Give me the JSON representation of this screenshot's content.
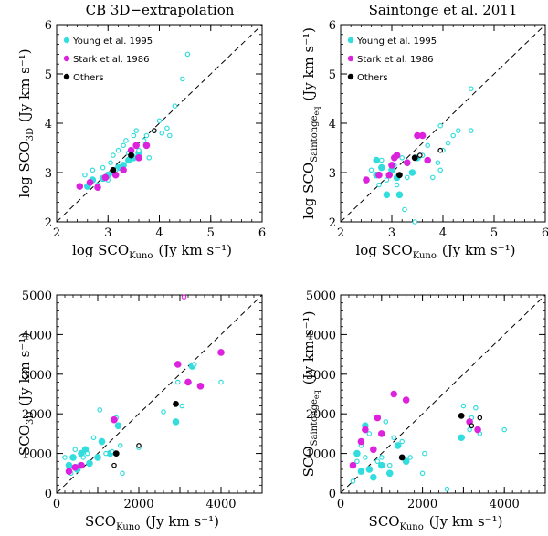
{
  "figure": {
    "col_titles": [
      "CB 3D−extrapolation",
      "Saintonge et al. 2011"
    ]
  },
  "legend": {
    "entries": [
      {
        "label": "Young et al. 1995",
        "color": "#33dddd"
      },
      {
        "label": "Stark et al. 1986",
        "color": "#dd22dd"
      },
      {
        "label": "Others",
        "color": "#000000"
      }
    ]
  },
  "chart_data": [
    {
      "id": "tl",
      "type": "scatter",
      "log": true,
      "title": "CB 3D−extrapolation",
      "xlabel": "log SCO",
      "xlabel_sub": "Kuno",
      "xlabel_unit": "(Jy km s⁻¹)",
      "ylabel": "log SCO",
      "ylabel_sub": "3D",
      "ylabel_unit": "(Jy km s⁻¹)",
      "xlim": [
        2,
        6
      ],
      "ylim": [
        2,
        6
      ],
      "xticks": [
        "2",
        "3",
        "4",
        "5",
        "6"
      ],
      "yticks": [
        "2",
        "3",
        "4",
        "5",
        "6"
      ],
      "xtick_values": [
        2,
        3,
        4,
        5,
        6
      ],
      "ytick_values": [
        2,
        3,
        4,
        5,
        6
      ],
      "one_to_one": true,
      "legend": true,
      "series": [
        {
          "name": "Young et al. 1995",
          "color": "#33dddd",
          "filled": [
            [
              2.6,
              2.72
            ],
            [
              2.7,
              2.85
            ],
            [
              2.9,
              2.88
            ],
            [
              3.0,
              2.95
            ],
            [
              3.1,
              3.0
            ],
            [
              3.2,
              3.1
            ],
            [
              3.3,
              3.15
            ],
            [
              3.4,
              3.25
            ],
            [
              3.45,
              3.35
            ],
            [
              3.5,
              3.3
            ],
            [
              3.6,
              3.4
            ],
            [
              3.75,
              3.55
            ]
          ],
          "open": [
            [
              2.55,
              2.95
            ],
            [
              2.7,
              3.05
            ],
            [
              2.8,
              2.75
            ],
            [
              2.9,
              3.1
            ],
            [
              3.0,
              2.85
            ],
            [
              3.05,
              3.2
            ],
            [
              3.1,
              3.35
            ],
            [
              3.15,
              3.05
            ],
            [
              3.2,
              3.45
            ],
            [
              3.3,
              3.55
            ],
            [
              3.35,
              3.65
            ],
            [
              3.4,
              3.4
            ],
            [
              3.5,
              3.75
            ],
            [
              3.55,
              3.85
            ],
            [
              3.6,
              3.45
            ],
            [
              3.7,
              3.65
            ],
            [
              3.75,
              3.75
            ],
            [
              3.8,
              3.3
            ],
            [
              3.9,
              3.85
            ],
            [
              4.0,
              4.05
            ],
            [
              4.05,
              3.8
            ],
            [
              4.15,
              3.9
            ],
            [
              4.2,
              3.75
            ],
            [
              4.3,
              4.35
            ],
            [
              4.45,
              4.9
            ],
            [
              4.55,
              5.4
            ]
          ]
        },
        {
          "name": "Stark et al. 1986",
          "color": "#dd22dd",
          "filled": [
            [
              2.45,
              2.72
            ],
            [
              2.65,
              2.8
            ],
            [
              2.8,
              2.7
            ],
            [
              2.95,
              2.9
            ],
            [
              3.15,
              2.95
            ],
            [
              3.3,
              3.05
            ],
            [
              3.45,
              3.45
            ],
            [
              3.55,
              3.55
            ],
            [
              3.6,
              3.3
            ],
            [
              3.75,
              3.55
            ]
          ],
          "open": []
        },
        {
          "name": "Others",
          "color": "#000000",
          "filled": [
            [
              3.45,
              3.35
            ],
            [
              3.1,
              3.05
            ]
          ],
          "open": [
            [
              3.9,
              3.85
            ]
          ]
        }
      ]
    },
    {
      "id": "tr",
      "type": "scatter",
      "log": true,
      "title": "Saintonge et al. 2011",
      "xlabel": "log SCO",
      "xlabel_sub": "Kuno",
      "xlabel_unit": "(Jy km s⁻¹)",
      "ylabel": "log SCO",
      "ylabel_sub": "Saintonge",
      "ylabel_sub2": "eq",
      "ylabel_unit": "(Jy km s⁻¹)",
      "xlim": [
        2,
        6
      ],
      "ylim": [
        2,
        6
      ],
      "xticks": [
        "2",
        "3",
        "4",
        "5",
        "6"
      ],
      "yticks": [
        "2",
        "3",
        "4",
        "5",
        "6"
      ],
      "xtick_values": [
        2,
        3,
        4,
        5,
        6
      ],
      "ytick_values": [
        2,
        3,
        4,
        5,
        6
      ],
      "one_to_one": true,
      "legend": true,
      "series": [
        {
          "name": "Young et al. 1995",
          "color": "#33dddd",
          "filled": [
            [
              2.7,
              3.25
            ],
            [
              2.7,
              2.95
            ],
            [
              2.8,
              3.1
            ],
            [
              2.9,
              2.55
            ],
            [
              3.0,
              3.05
            ],
            [
              3.1,
              2.9
            ],
            [
              3.15,
              2.55
            ],
            [
              3.3,
              3.2
            ],
            [
              3.4,
              3.0
            ],
            [
              3.5,
              3.3
            ]
          ],
          "open": [
            [
              2.6,
              3.05
            ],
            [
              2.75,
              2.75
            ],
            [
              2.8,
              3.25
            ],
            [
              2.9,
              2.85
            ],
            [
              3.05,
              3.15
            ],
            [
              3.1,
              2.75
            ],
            [
              3.2,
              3.3
            ],
            [
              3.25,
              2.25
            ],
            [
              3.3,
              2.9
            ],
            [
              3.45,
              2.0
            ],
            [
              3.6,
              3.35
            ],
            [
              3.7,
              3.55
            ],
            [
              3.8,
              2.9
            ],
            [
              3.9,
              3.2
            ],
            [
              3.95,
              3.95
            ],
            [
              4.0,
              3.45
            ],
            [
              4.1,
              3.6
            ],
            [
              4.2,
              3.75
            ],
            [
              4.3,
              3.85
            ],
            [
              4.55,
              4.7
            ],
            [
              4.55,
              3.85
            ],
            [
              3.95,
              3.05
            ]
          ]
        },
        {
          "name": "Stark et al. 1986",
          "color": "#dd22dd",
          "filled": [
            [
              2.5,
              2.85
            ],
            [
              2.75,
              2.95
            ],
            [
              3.0,
              3.15
            ],
            [
              3.1,
              3.35
            ],
            [
              3.3,
              3.2
            ],
            [
              3.5,
              3.75
            ],
            [
              3.6,
              3.75
            ],
            [
              3.7,
              3.25
            ],
            [
              2.95,
              2.95
            ],
            [
              3.05,
              3.3
            ]
          ],
          "open": []
        },
        {
          "name": "Others",
          "color": "#000000",
          "filled": [
            [
              3.45,
              3.3
            ],
            [
              3.15,
              2.95
            ]
          ],
          "open": [
            [
              3.55,
              3.35
            ],
            [
              3.95,
              3.45
            ]
          ]
        }
      ]
    },
    {
      "id": "bl",
      "type": "scatter",
      "log": false,
      "xlabel": "SCO",
      "xlabel_sub": "Kuno",
      "xlabel_unit": "(Jy km s⁻¹)",
      "ylabel": "SCO",
      "ylabel_sub": "3D",
      "ylabel_unit": "(Jy km s⁻¹)",
      "xlim": [
        0,
        5000
      ],
      "ylim": [
        0,
        5000
      ],
      "xticks": [
        "0",
        "2000",
        "4000"
      ],
      "yticks": [
        "0",
        "1000",
        "2000",
        "3000",
        "4000",
        "5000"
      ],
      "xtick_values": [
        0,
        2000,
        4000
      ],
      "ytick_values": [
        0,
        1000,
        2000,
        3000,
        4000,
        5000
      ],
      "one_to_one": true,
      "legend": false,
      "series": [
        {
          "name": "Young et al. 1995",
          "color": "#33dddd",
          "filled": [
            [
              300,
              700
            ],
            [
              400,
              900
            ],
            [
              500,
              600
            ],
            [
              600,
              1000
            ],
            [
              700,
              1100
            ],
            [
              800,
              750
            ],
            [
              1000,
              900
            ],
            [
              1100,
              1300
            ],
            [
              1300,
              1000
            ],
            [
              1500,
              1700
            ],
            [
              2900,
              1800
            ],
            [
              3300,
              3200
            ]
          ],
          "open": [
            [
              200,
              900
            ],
            [
              350,
              500
            ],
            [
              450,
              1100
            ],
            [
              550,
              700
            ],
            [
              650,
              900
            ],
            [
              750,
              1000
            ],
            [
              900,
              1400
            ],
            [
              1050,
              2100
            ],
            [
              1200,
              1000
            ],
            [
              1350,
              1050
            ],
            [
              1450,
              1900
            ],
            [
              1550,
              1200
            ],
            [
              1600,
              500
            ],
            [
              2000,
              1150
            ],
            [
              2600,
              2050
            ],
            [
              2950,
              2800
            ],
            [
              3050,
              2200
            ],
            [
              3350,
              3250
            ],
            [
              4000,
              2800
            ]
          ]
        },
        {
          "name": "Stark et al. 1986",
          "color": "#dd22dd",
          "filled": [
            [
              300,
              550
            ],
            [
              450,
              650
            ],
            [
              600,
              700
            ],
            [
              1400,
              1850
            ],
            [
              2950,
              3250
            ],
            [
              3200,
              2800
            ],
            [
              3500,
              2700
            ],
            [
              4000,
              3550
            ]
          ],
          "open": [
            [
              3100,
              4950
            ]
          ]
        },
        {
          "name": "Others",
          "color": "#000000",
          "filled": [
            [
              1450,
              1000
            ],
            [
              2900,
              2250
            ]
          ],
          "open": [
            [
              1400,
              700
            ],
            [
              2000,
              1200
            ]
          ]
        }
      ]
    },
    {
      "id": "br",
      "type": "scatter",
      "log": false,
      "xlabel": "SCO",
      "xlabel_sub": "Kuno",
      "xlabel_unit": "(Jy km s⁻¹)",
      "ylabel": "SCO",
      "ylabel_sub": "Saintonge",
      "ylabel_sub2": "eq",
      "ylabel_unit": "(Jy km s⁻¹)",
      "xlim": [
        0,
        5000
      ],
      "ylim": [
        0,
        5000
      ],
      "xticks": [
        "0",
        "2000",
        "4000"
      ],
      "yticks": [
        "0",
        "1000",
        "2000",
        "3000",
        "4000",
        "5000"
      ],
      "xtick_values": [
        0,
        2000,
        4000
      ],
      "ytick_values": [
        0,
        1000,
        2000,
        3000,
        4000,
        5000
      ],
      "one_to_one": true,
      "legend": false,
      "series": [
        {
          "name": "Young et al. 1995",
          "color": "#33dddd",
          "filled": [
            [
              400,
              1000
            ],
            [
              500,
              550
            ],
            [
              600,
              1700
            ],
            [
              700,
              600
            ],
            [
              800,
              400
            ],
            [
              1000,
              700
            ],
            [
              1200,
              500
            ],
            [
              1400,
              1200
            ],
            [
              1600,
              800
            ],
            [
              2950,
              1400
            ]
          ],
          "open": [
            [
              300,
              300
            ],
            [
              400,
              800
            ],
            [
              500,
              1200
            ],
            [
              600,
              900
            ],
            [
              700,
              1500
            ],
            [
              800,
              1100
            ],
            [
              900,
              800
            ],
            [
              1000,
              900
            ],
            [
              1100,
              1800
            ],
            [
              1200,
              700
            ],
            [
              1300,
              1400
            ],
            [
              1500,
              1300
            ],
            [
              1700,
              900
            ],
            [
              2000,
              500
            ],
            [
              2050,
              1000
            ],
            [
              2600,
              100
            ],
            [
              3000,
              2200
            ],
            [
              3300,
              2150
            ],
            [
              3150,
              1600
            ],
            [
              3400,
              1500
            ],
            [
              4000,
              1600
            ],
            [
              3200,
              1900
            ]
          ]
        },
        {
          "name": "Stark et al. 1986",
          "color": "#dd22dd",
          "filled": [
            [
              300,
              700
            ],
            [
              500,
              1300
            ],
            [
              600,
              1600
            ],
            [
              900,
              1900
            ],
            [
              1300,
              2500
            ],
            [
              1600,
              2350
            ],
            [
              3350,
              1600
            ],
            [
              3150,
              1800
            ],
            [
              800,
              1100
            ],
            [
              1000,
              1500
            ]
          ],
          "open": []
        },
        {
          "name": "Others",
          "color": "#000000",
          "filled": [
            [
              1500,
              900
            ],
            [
              2950,
              1950
            ]
          ],
          "open": [
            [
              3200,
              1700
            ],
            [
              3400,
              1900
            ]
          ]
        }
      ]
    }
  ]
}
